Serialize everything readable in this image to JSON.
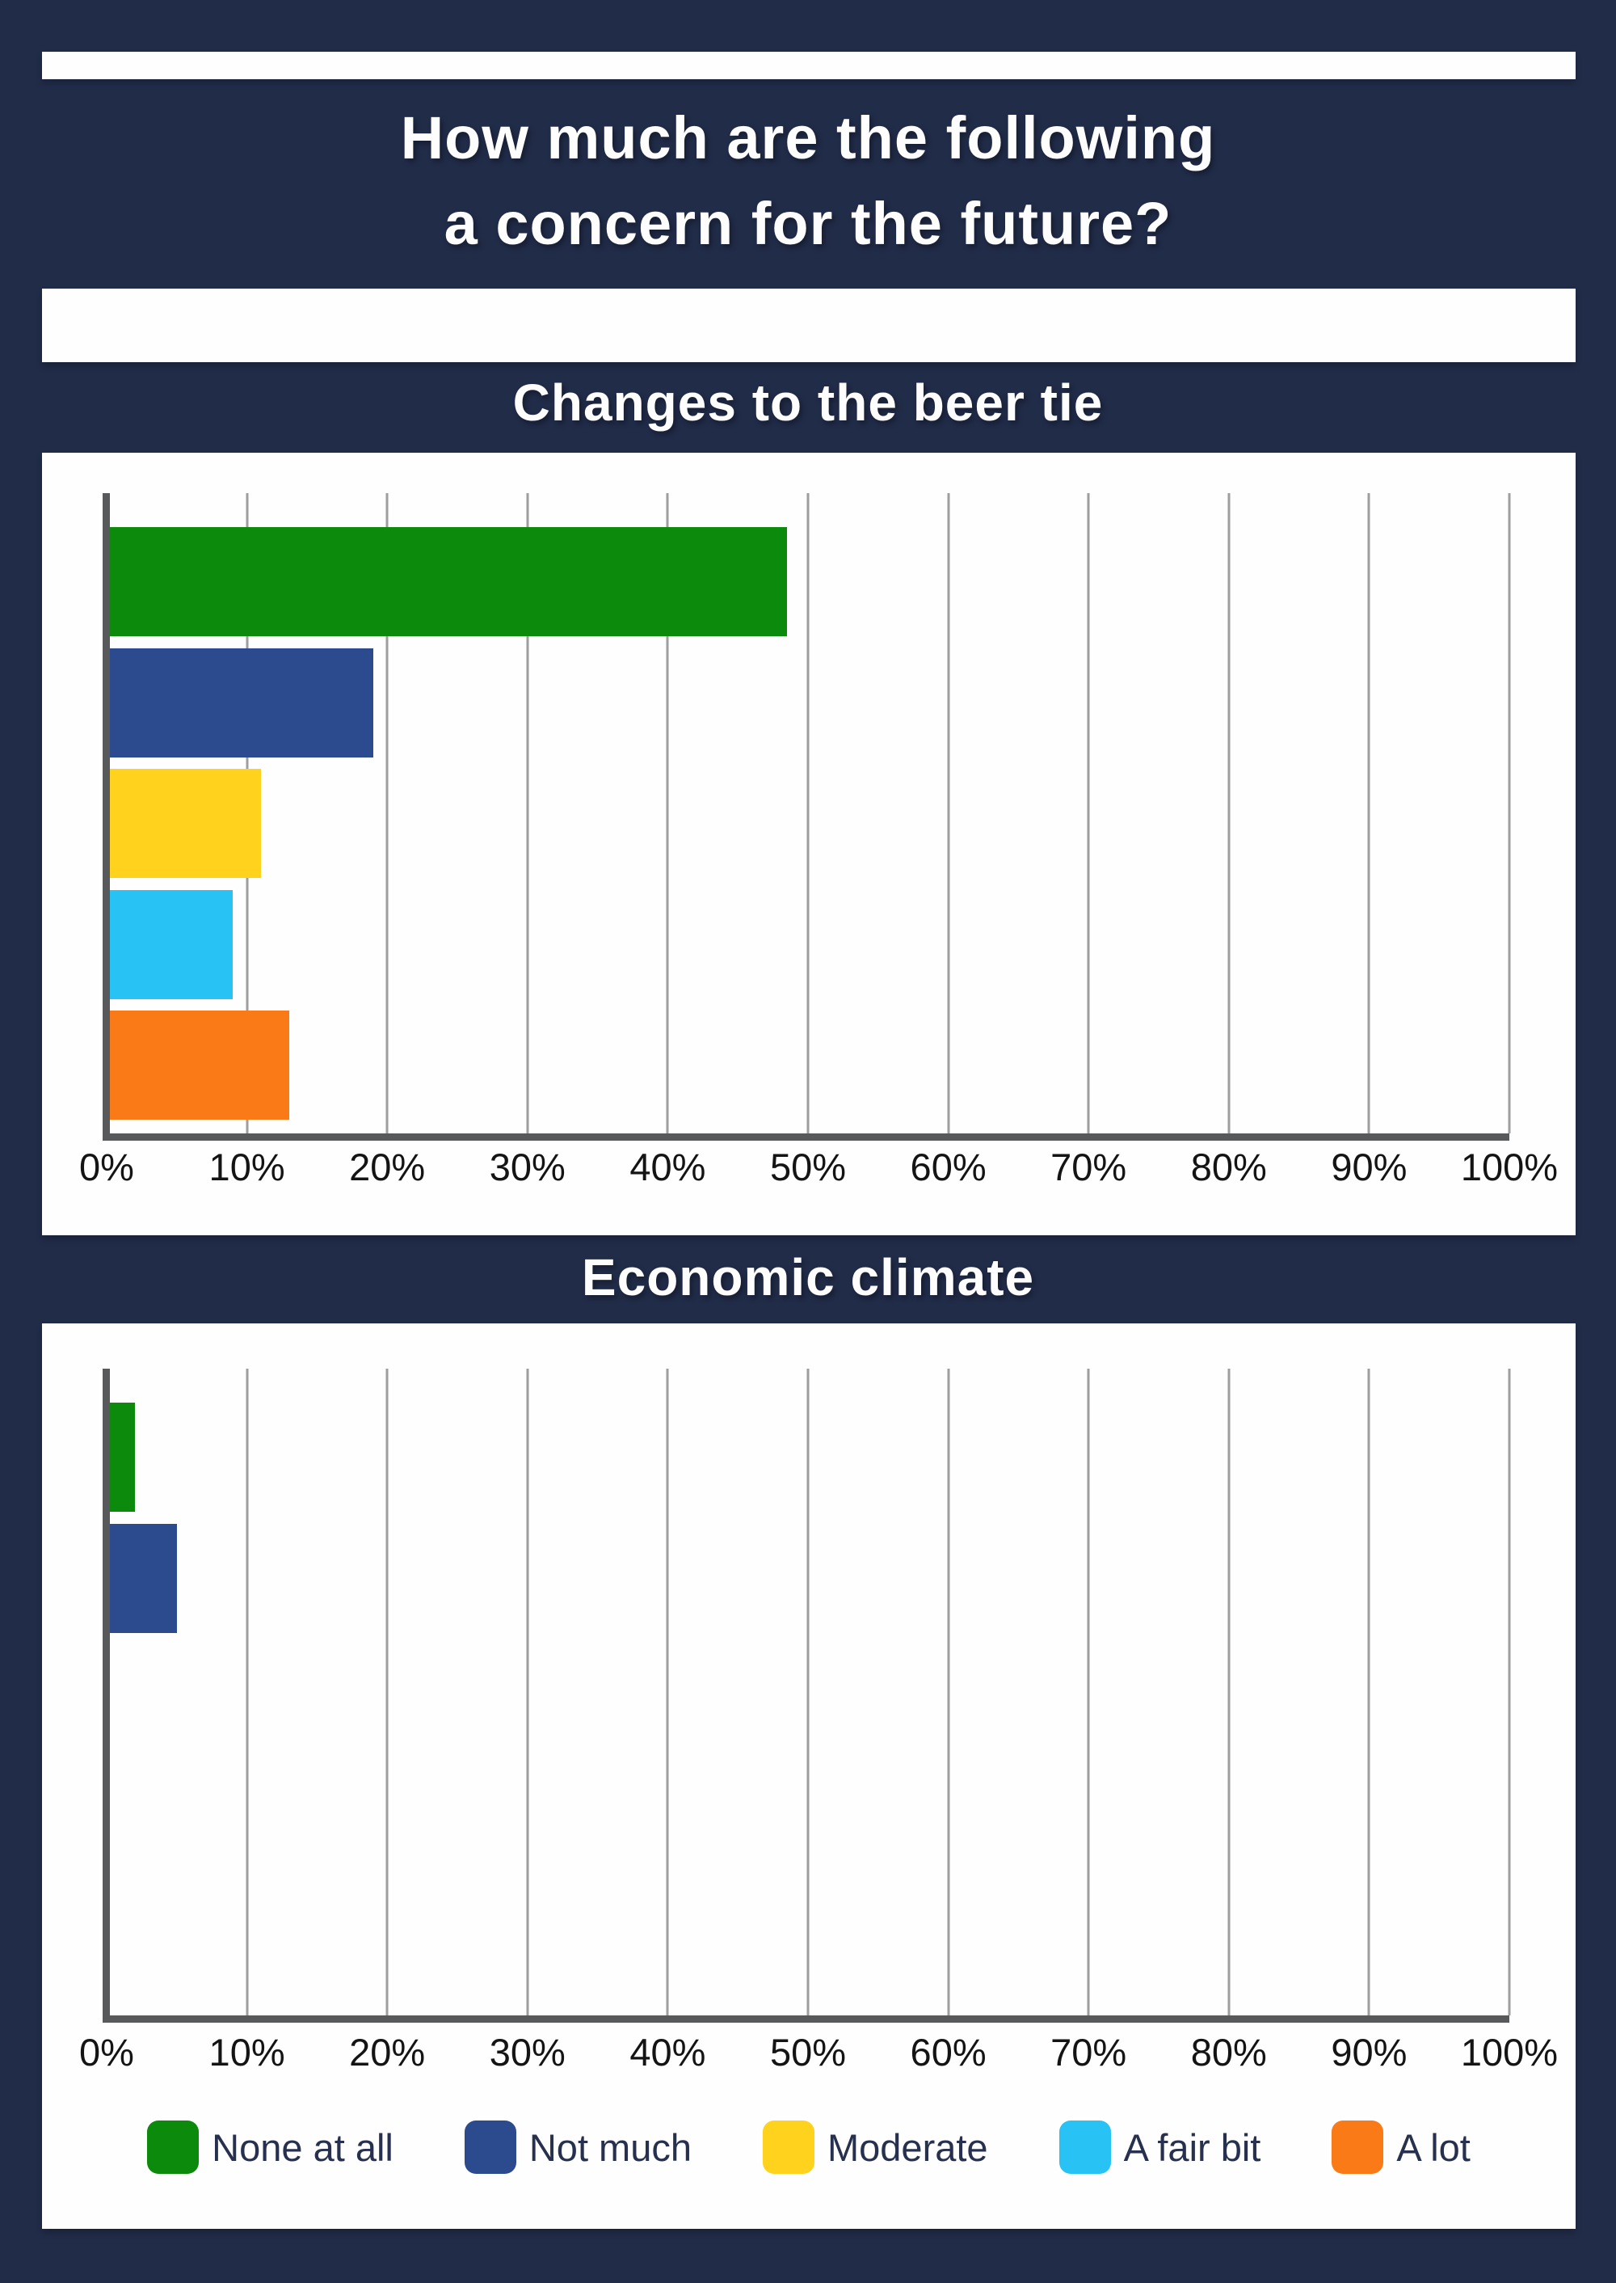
{
  "page": {
    "background_color": "#212C49",
    "panel_color": "#FEFEFE",
    "title": {
      "line1": "How much are the following",
      "line2": "a concern for the future?"
    }
  },
  "legend": {
    "items": [
      {
        "label": "None at all",
        "color": "#0B8A0B"
      },
      {
        "label": "Not much",
        "color": "#2C4B8E"
      },
      {
        "label": "Moderate",
        "color": "#FFD21E"
      },
      {
        "label": "A fair bit",
        "color": "#28C3F4"
      },
      {
        "label": "A lot",
        "color": "#FA7A18"
      }
    ]
  },
  "chart_data": [
    {
      "type": "bar",
      "orientation": "horizontal",
      "title": "Changes to the beer tie",
      "categories": [
        "None at all",
        "Not much",
        "Moderate",
        "A fair bit",
        "A lot"
      ],
      "values": [
        48.5,
        19,
        11,
        9,
        13
      ],
      "unit": "%",
      "xlim": [
        0,
        100
      ],
      "x_ticks": [
        "0%",
        "10%",
        "20%",
        "30%",
        "40%",
        "50%",
        "60%",
        "70%",
        "80%",
        "90%",
        "100%"
      ],
      "grid": true,
      "legend_position": "bottom",
      "colors": [
        "#0B8A0B",
        "#2C4B8E",
        "#FFD21E",
        "#28C3F4",
        "#FA7A18"
      ],
      "gridline_color": "#9E9E9E",
      "axis_color": "#58595B"
    },
    {
      "type": "bar",
      "orientation": "horizontal",
      "title": "Economic climate",
      "categories": [
        "None at all",
        "Not much",
        "Moderate",
        "A fair bit",
        "A lot"
      ],
      "values": [
        2,
        5,
        0,
        0,
        0
      ],
      "unit": "%",
      "xlim": [
        0,
        100
      ],
      "x_ticks": [
        "0%",
        "10%",
        "20%",
        "30%",
        "40%",
        "50%",
        "60%",
        "70%",
        "80%",
        "90%",
        "100%"
      ],
      "grid": true,
      "legend_position": "bottom",
      "colors": [
        "#0B8A0B",
        "#2C4B8E",
        "#FFD21E",
        "#28C3F4",
        "#FA7A18"
      ],
      "gridline_color": "#9E9E9E",
      "axis_color": "#58595B"
    }
  ]
}
